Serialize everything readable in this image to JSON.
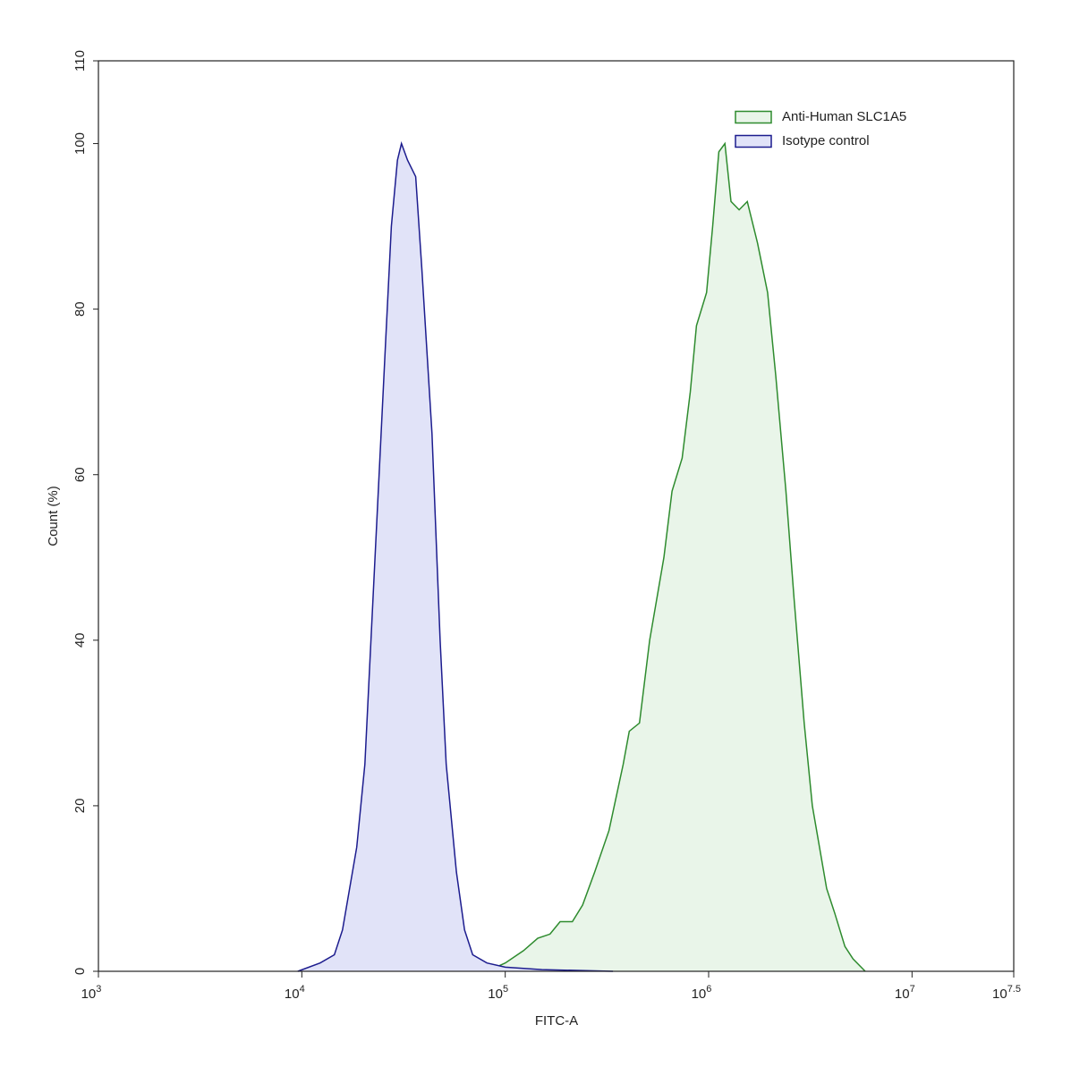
{
  "chart_data": {
    "type": "histogram-overlay",
    "x_label": "FITC-A",
    "y_label": "Count  (%)",
    "xscale": "log",
    "xlim": [
      1000,
      31622776.6
    ],
    "xticks": [
      {
        "value": 1000,
        "label": "10",
        "exponent": "3"
      },
      {
        "value": 10000,
        "label": "10",
        "exponent": "4"
      },
      {
        "value": 100000,
        "label": "10",
        "exponent": "5"
      },
      {
        "value": 1000000,
        "label": "10",
        "exponent": "6"
      },
      {
        "value": 10000000,
        "label": "10",
        "exponent": "7"
      },
      {
        "value": 31622776.6,
        "label": "10",
        "exponent": "7.5"
      }
    ],
    "ylim": [
      0,
      110
    ],
    "yticks": [
      0,
      20,
      40,
      60,
      80,
      100,
      110
    ],
    "legend": "top-right",
    "series": [
      {
        "name": "Anti-Human SLC1A5",
        "color": "#2e8b2e",
        "fill": "#e9f5e9",
        "x": [
          81280,
          100000,
          123000,
          144500,
          166000,
          186200,
          213800,
          239900,
          275400,
          323600,
          380200,
          407400,
          457100,
          512900,
          602600,
          660700,
          741300,
          812800,
          871000,
          977200,
          1047000,
          1122000,
          1202000,
          1288000,
          1413000,
          1549000,
          1738000,
          1950000,
          2138000,
          2399000,
          2630000,
          2951000,
          3236000,
          3802000,
          4169000,
          4677000,
          5129000,
          5888000
        ],
        "values": [
          0,
          1,
          2.5,
          4,
          4.5,
          6,
          6,
          8,
          12,
          17,
          25,
          29,
          30,
          40,
          50,
          58,
          62,
          70,
          78,
          82,
          90,
          99,
          100,
          93,
          92,
          93,
          88,
          82,
          72,
          58,
          45,
          30,
          20,
          10,
          7,
          3,
          1.5,
          0
        ]
      },
      {
        "name": "Isotype control",
        "color": "#1c1c8e",
        "fill": "#e1e3f8",
        "x": [
          9550,
          12300,
          14450,
          15850,
          18620,
          20420,
          21880,
          23990,
          25700,
          27540,
          29510,
          30900,
          33110,
          36310,
          38900,
          43650,
          47860,
          51290,
          57540,
          63100,
          69180,
          81280,
          100000,
          151400,
          338800
        ],
        "values": [
          0,
          1,
          2,
          5,
          15,
          25,
          40,
          60,
          75,
          90,
          98,
          100,
          98,
          96,
          85,
          65,
          40,
          25,
          12,
          5,
          2,
          1,
          0.5,
          0.2,
          0
        ]
      }
    ]
  }
}
